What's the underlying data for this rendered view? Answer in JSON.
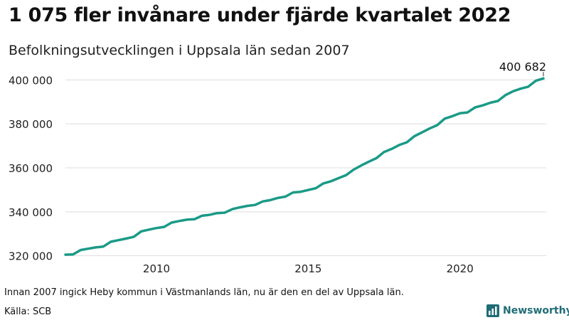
{
  "header": {
    "title": "1 075 fler invånare under fjärde kvartalet 2022",
    "subtitle": "Befolkningsutvecklingen i Uppsala län sedan 2007"
  },
  "footer": {
    "note": "Innan 2007 ingick Heby kommun i Västmanlands län, nu är den en del av Uppsala län.",
    "source": "Källa: SCB",
    "brand": "Newsworthy"
  },
  "colors": {
    "line": "#1a9a87",
    "grid": "#dddddd",
    "brand": "#1f6c76"
  },
  "chart_data": {
    "type": "line",
    "title": "1 075 fler invånare under fjärde kvartalet 2022",
    "subtitle": "Befolkningsutvecklingen i Uppsala län sedan 2007",
    "xlabel": "",
    "ylabel": "",
    "xlim": [
      2007,
      2022.75
    ],
    "ylim": [
      316000,
      404000
    ],
    "grid": true,
    "y_ticks": [
      {
        "value": 320000,
        "label": "320 000"
      },
      {
        "value": 340000,
        "label": "340 000"
      },
      {
        "value": 360000,
        "label": "360 000"
      },
      {
        "value": 380000,
        "label": "380 000"
      },
      {
        "value": 400000,
        "label": "400 000"
      }
    ],
    "x_ticks": [
      {
        "value": 2010,
        "label": "2010"
      },
      {
        "value": 2015,
        "label": "2015"
      },
      {
        "value": 2020,
        "label": "2020"
      }
    ],
    "annotation": {
      "x": 2022.75,
      "y": 400682,
      "label": "400 682"
    },
    "series": [
      {
        "x": [
          2007,
          2007.25,
          2007.5,
          2007.75,
          2008,
          2008.25,
          2008.5,
          2008.75,
          2009,
          2009.25,
          2009.5,
          2009.75,
          2010,
          2010.25,
          2010.5,
          2010.75,
          2011,
          2011.25,
          2011.5,
          2011.75,
          2012,
          2012.25,
          2012.5,
          2012.75,
          2013,
          2013.25,
          2013.5,
          2013.75,
          2014,
          2014.25,
          2014.5,
          2014.75,
          2015,
          2015.25,
          2015.5,
          2015.75,
          2016,
          2016.25,
          2016.5,
          2016.75,
          2017,
          2017.25,
          2017.5,
          2017.75,
          2018,
          2018.25,
          2018.5,
          2018.75,
          2019,
          2019.25,
          2019.5,
          2019.75,
          2020,
          2020.25,
          2020.5,
          2020.75,
          2021,
          2021.25,
          2021.5,
          2021.75,
          2022,
          2022.25,
          2022.5,
          2022.75
        ],
        "values": [
          320500,
          320600,
          322600,
          323200,
          323800,
          324200,
          326400,
          327100,
          327800,
          328600,
          331100,
          331900,
          332600,
          333100,
          335100,
          335800,
          336400,
          336600,
          338200,
          338600,
          339400,
          339600,
          341200,
          342000,
          342700,
          343100,
          344700,
          345300,
          346300,
          346900,
          348800,
          349100,
          349900,
          350700,
          352900,
          353900,
          355300,
          356700,
          359200,
          361100,
          362800,
          364400,
          367200,
          368600,
          370400,
          371600,
          374400,
          376100,
          377900,
          379400,
          382400,
          383500,
          384800,
          385200,
          387500,
          388400,
          389600,
          390400,
          393100,
          394800,
          396000,
          396900,
          399600,
          400682
        ]
      }
    ]
  }
}
